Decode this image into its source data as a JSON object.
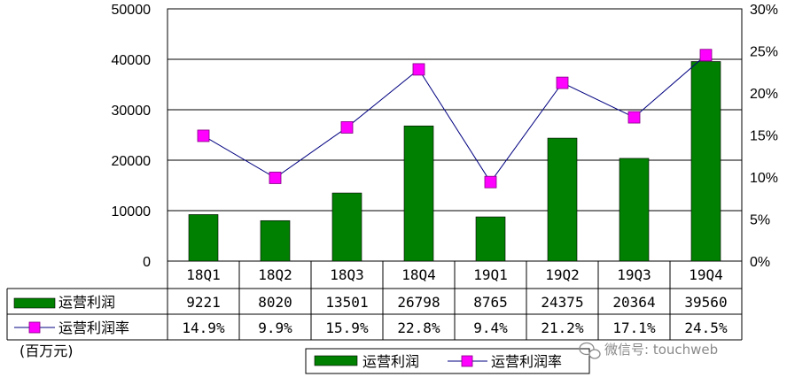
{
  "chart_data": {
    "type": "bar",
    "categories": [
      "18Q1",
      "18Q2",
      "18Q3",
      "18Q4",
      "19Q1",
      "19Q2",
      "19Q3",
      "19Q4"
    ],
    "series": [
      {
        "name": "运营利润",
        "type": "bar",
        "axis": "left",
        "color": "#008000",
        "values": [
          9221,
          8020,
          13501,
          26798,
          8765,
          24375,
          20364,
          39560
        ]
      },
      {
        "name": "运营利润率",
        "type": "line",
        "axis": "right",
        "color": "#ff00ff",
        "values": [
          14.9,
          9.9,
          15.9,
          22.8,
          9.4,
          21.2,
          17.1,
          24.5
        ]
      }
    ],
    "y_left": {
      "min": 0,
      "max": 50000,
      "ticks": [
        0,
        10000,
        20000,
        30000,
        40000,
        50000
      ]
    },
    "y_right": {
      "min": 0,
      "max": 30,
      "ticks": [
        "0%",
        "5%",
        "10%",
        "15%",
        "20%",
        "25%",
        "30%"
      ]
    },
    "table": {
      "rows": [
        {
          "label": "运营利润",
          "cells": [
            "9221",
            "8020",
            "13501",
            "26798",
            "8765",
            "24375",
            "20364",
            "39560"
          ]
        },
        {
          "label": "运营利润率",
          "cells": [
            "14.9%",
            "9.9%",
            "15.9%",
            "22.8%",
            "9.4%",
            "21.2%",
            "17.1%",
            "24.5%"
          ]
        }
      ]
    },
    "unit_label": "(百万元)",
    "legend_position": "bottom",
    "grid": true
  },
  "watermark": "微信号: touchweb",
  "watermark_icon": "wechat-icon"
}
